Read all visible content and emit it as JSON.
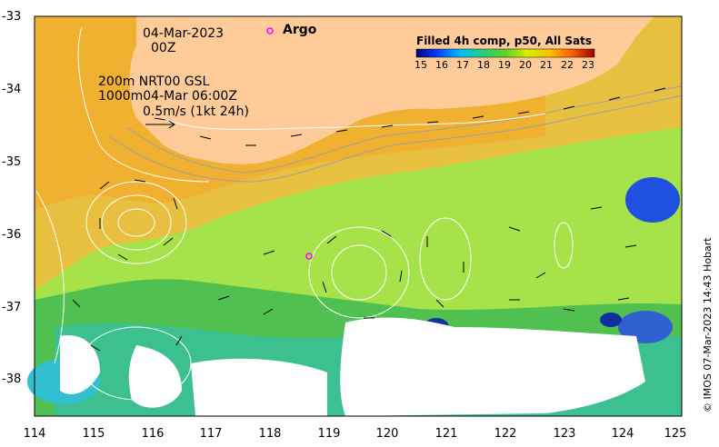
{
  "header": {
    "date": "04-Mar-2023",
    "time": "00Z",
    "argo_label": "Argo"
  },
  "info": {
    "line1": "200m  NRT00 GSL",
    "line2": "1000m04-Mar 06:00Z",
    "line3": "0.5m/s (1kt 24h)"
  },
  "colorbar": {
    "title": "Filled 4h comp, p50, All Sats",
    "labels": [
      "15",
      "16",
      "17",
      "18",
      "19",
      "20",
      "21",
      "22",
      "23"
    ]
  },
  "axes": {
    "x_ticks": [
      "114",
      "115",
      "116",
      "117",
      "118",
      "119",
      "120",
      "121",
      "122",
      "123",
      "124",
      "125"
    ],
    "y_ticks": [
      "-33",
      "-34",
      "-35",
      "-36",
      "-37",
      "-38"
    ]
  },
  "copyright": "© IMOS 07-Mar-2023 14:43 Hobart",
  "colors": {
    "land": "#ffcc99",
    "argo_marker": "#ff00ff"
  }
}
